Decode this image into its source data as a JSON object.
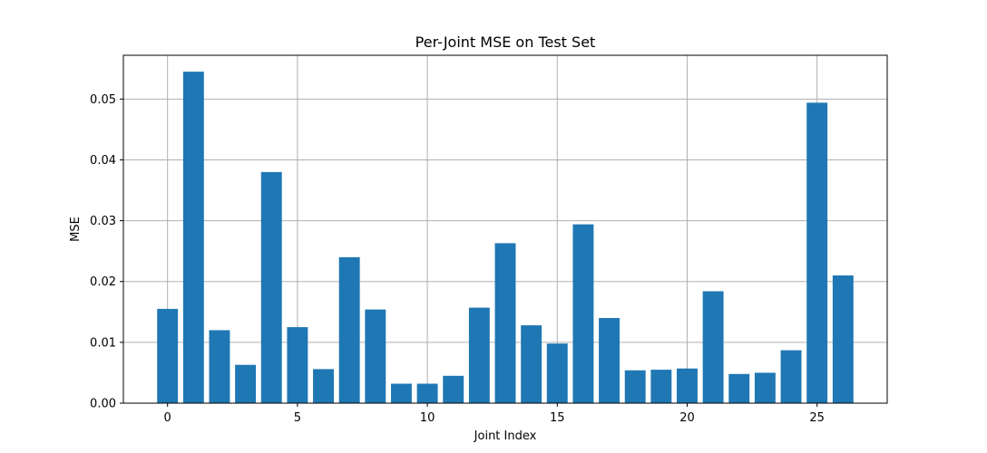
{
  "chart_data": {
    "type": "bar",
    "title": "Per-Joint MSE on Test Set",
    "xlabel": "Joint Index",
    "ylabel": "MSE",
    "x": [
      0,
      1,
      2,
      3,
      4,
      5,
      6,
      7,
      8,
      9,
      10,
      11,
      12,
      13,
      14,
      15,
      16,
      17,
      18,
      19,
      20,
      21,
      22,
      23,
      24,
      25,
      26
    ],
    "values": [
      0.0155,
      0.0545,
      0.012,
      0.0063,
      0.038,
      0.0125,
      0.0056,
      0.024,
      0.0154,
      0.0032,
      0.0032,
      0.0045,
      0.0157,
      0.0263,
      0.0128,
      0.0098,
      0.0294,
      0.014,
      0.0054,
      0.0055,
      0.0057,
      0.0184,
      0.0048,
      0.005,
      0.0087,
      0.0494,
      0.021
    ],
    "xlim": [
      -1.7,
      27.7
    ],
    "ylim": [
      0,
      0.0572
    ],
    "xticks": [
      0,
      5,
      10,
      15,
      20,
      25
    ],
    "yticks": [
      0.0,
      0.01,
      0.02,
      0.03,
      0.04,
      0.05
    ],
    "ytick_labels": [
      "0.00",
      "0.01",
      "0.02",
      "0.03",
      "0.04",
      "0.05"
    ],
    "grid": true,
    "bar_color": "#1f77b4",
    "grid_color": "#b0b0b0"
  }
}
